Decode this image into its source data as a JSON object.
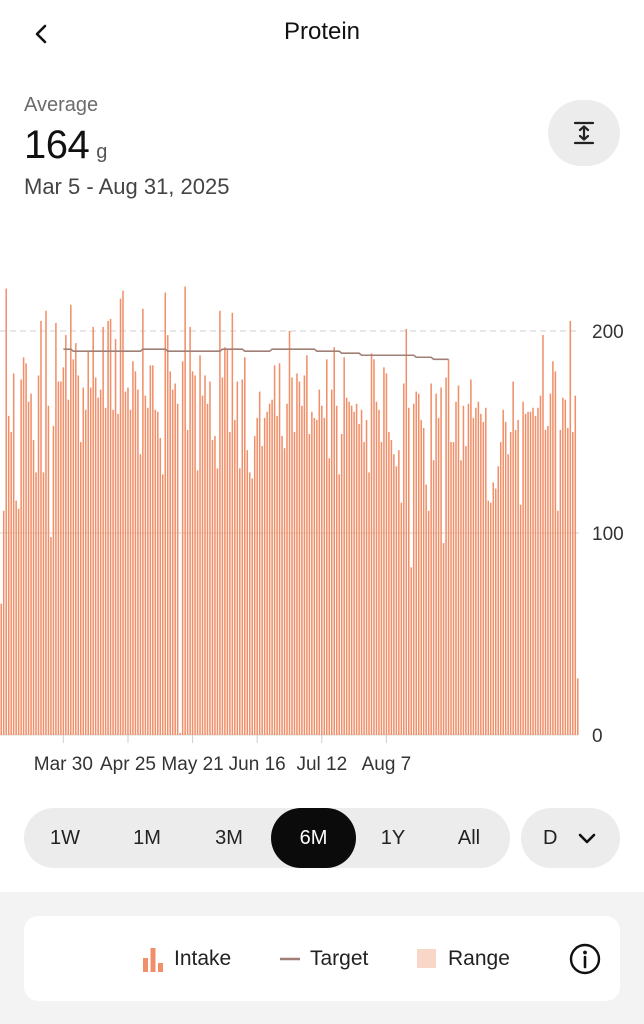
{
  "header": {
    "title": "Protein",
    "back_icon": "chevron-left-icon"
  },
  "summary": {
    "label": "Average",
    "value": "164",
    "unit": "g",
    "date_range": "Mar 5 - Aug 31, 2025"
  },
  "expand_icon": "expand-vertical-icon",
  "chart_data": {
    "type": "bar",
    "title": "",
    "xlabel": "",
    "ylabel": "",
    "ylim": [
      0,
      250
    ],
    "y_ticks": [
      0,
      100,
      200
    ],
    "x_tick_labels": [
      "Mar 30",
      "Apr 25",
      "May 21",
      "Jun 16",
      "Jul 12",
      "Aug 7"
    ],
    "grid": "horizontal lines at 100 and 200",
    "series": [
      {
        "name": "Intake",
        "color": "#F0906A",
        "start_date": "Mar 5",
        "values": [
          65,
          111,
          221,
          158,
          150,
          179,
          116,
          112,
          176,
          187,
          184,
          165,
          169,
          146,
          130,
          178,
          205,
          130,
          210,
          163,
          98,
          153,
          204,
          175,
          175,
          182,
          198,
          166,
          213,
          186,
          194,
          178,
          145,
          172,
          161,
          190,
          172,
          202,
          177,
          167,
          171,
          202,
          162,
          205,
          206,
          161,
          196,
          159,
          216,
          220,
          170,
          172,
          161,
          185,
          180,
          171,
          139,
          211,
          168,
          162,
          183,
          183,
          161,
          160,
          147,
          129,
          219,
          198,
          180,
          171,
          174,
          164,
          1,
          185,
          222,
          151,
          202,
          180,
          178,
          131,
          188,
          168,
          178,
          164,
          175,
          146,
          148,
          132,
          210,
          177,
          192,
          191,
          150,
          209,
          156,
          175,
          132,
          176,
          187,
          141,
          130,
          127,
          148,
          157,
          170,
          143,
          157,
          160,
          164,
          166,
          183,
          158,
          184,
          148,
          142,
          164,
          200,
          177,
          150,
          179,
          175,
          163,
          178,
          188,
          149,
          160,
          157,
          156,
          171,
          163,
          157,
          186,
          137,
          171,
          192,
          163,
          129,
          149,
          187,
          167,
          165,
          163,
          160,
          164,
          154,
          161,
          145,
          156,
          130,
          189,
          186,
          165,
          161,
          145,
          182,
          179,
          150,
          146,
          139,
          133,
          141,
          115,
          174,
          201,
          162,
          83,
          164,
          170,
          169,
          156,
          152,
          124,
          111,
          174,
          136,
          169,
          157,
          172,
          95,
          177,
          186,
          145,
          145,
          165,
          173,
          136,
          163,
          143,
          164,
          176,
          157,
          162,
          165,
          159,
          155,
          162,
          116,
          115,
          125,
          122,
          133,
          145,
          161,
          155,
          139,
          150,
          175,
          151,
          156,
          114,
          165,
          159,
          160,
          160,
          162,
          158,
          162,
          168,
          198,
          151,
          153,
          169,
          185,
          180,
          111,
          151,
          167,
          166,
          152,
          205,
          150,
          168,
          28
        ]
      },
      {
        "name": "Target",
        "color": "#A07F76",
        "start_date": "Mar 30",
        "values": [
          191,
          191,
          191,
          191,
          190,
          190,
          190,
          190,
          190,
          190,
          190,
          190,
          190,
          190,
          190,
          190,
          190,
          190,
          190,
          190,
          190,
          190,
          190,
          190,
          190,
          190,
          190,
          190,
          190,
          190,
          190,
          190,
          191,
          191,
          191,
          191,
          191,
          191,
          191,
          191,
          191,
          191,
          190,
          190,
          190,
          190,
          190,
          190,
          190,
          190,
          190,
          190,
          190,
          190,
          190,
          190,
          190,
          190,
          190,
          190,
          190,
          190,
          190,
          190,
          191,
          191,
          191,
          191,
          191,
          191,
          191,
          191,
          191,
          190,
          190,
          190,
          190,
          190,
          190,
          190,
          190,
          190,
          190,
          190,
          191,
          191,
          191,
          191,
          191,
          191,
          191,
          191,
          191,
          191,
          191,
          191,
          191,
          191,
          191,
          191,
          191,
          191,
          190,
          190,
          190,
          190,
          190,
          190,
          190,
          190,
          190,
          190,
          189,
          189,
          189,
          189,
          189,
          189,
          189,
          189,
          188,
          188,
          188,
          188,
          188,
          188,
          188,
          188,
          188,
          188,
          188,
          188,
          188,
          188,
          188,
          188,
          188,
          188,
          188,
          188,
          188,
          188,
          187,
          187,
          187,
          187,
          187,
          187,
          187,
          186,
          186,
          186,
          186,
          186,
          186,
          186
        ]
      }
    ]
  },
  "range_selector": {
    "options": [
      "1W",
      "1M",
      "3M",
      "6M",
      "1Y",
      "All"
    ],
    "selected": "6M",
    "granularity": "D"
  },
  "legend": {
    "intake_label": "Intake",
    "target_label": "Target",
    "range_label": "Range",
    "intake_icon": "bar-chart-icon",
    "info_icon": "info-icon"
  },
  "colors": {
    "intake": "#F0906A",
    "target": "#A07F76",
    "range": "#F8D6C8",
    "selected_pill": "#0B0B0B",
    "pill_bg": "#ECECEC"
  }
}
